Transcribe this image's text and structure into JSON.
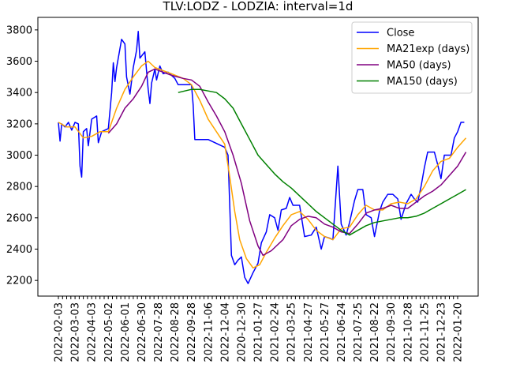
{
  "chart_data": {
    "type": "line",
    "title": "TLV:LODZ - LODZIA: interval=1d",
    "xlabel": "",
    "ylabel": "",
    "ylim": [
      2100,
      3880
    ],
    "y_ticks": [
      2200,
      2400,
      2600,
      2800,
      3000,
      3200,
      3400,
      3600,
      3800
    ],
    "x_tick_labels": [
      "2022-02-03",
      "2022-03-03",
      "2022-04-03",
      "2022-05-02",
      "2022-06-01",
      "2022-06-30",
      "2022-07-28",
      "2022-08-28",
      "2022-09-28",
      "2022-11-06",
      "2022-12-04",
      "2020-12-30",
      "2021-01-27",
      "2021-02-24",
      "2021-03-25",
      "2021-04-27",
      "2021-05-27",
      "2021-06-24",
      "2021-07-25",
      "2021-08-22",
      "2021-09-30",
      "2021-10-28",
      "2021-11-25",
      "2021-12-23",
      "2022-01-20"
    ],
    "x_count": 25,
    "grid": false,
    "legend_position": "top-right",
    "series": [
      {
        "name": "Close",
        "color": "#0000ff",
        "points": [
          [
            0,
            3210
          ],
          [
            0.1,
            3090
          ],
          [
            0.2,
            3200
          ],
          [
            0.4,
            3180
          ],
          [
            0.6,
            3210
          ],
          [
            0.8,
            3160
          ],
          [
            1.0,
            3210
          ],
          [
            1.2,
            3200
          ],
          [
            1.3,
            2930
          ],
          [
            1.4,
            2860
          ],
          [
            1.5,
            3150
          ],
          [
            1.7,
            3170
          ],
          [
            1.8,
            3060
          ],
          [
            2.0,
            3230
          ],
          [
            2.3,
            3250
          ],
          [
            2.4,
            3080
          ],
          [
            2.6,
            3150
          ],
          [
            3.0,
            3170
          ],
          [
            3.2,
            3400
          ],
          [
            3.3,
            3590
          ],
          [
            3.4,
            3470
          ],
          [
            3.5,
            3560
          ],
          [
            3.6,
            3620
          ],
          [
            3.8,
            3740
          ],
          [
            4.0,
            3710
          ],
          [
            4.1,
            3500
          ],
          [
            4.3,
            3390
          ],
          [
            4.5,
            3560
          ],
          [
            4.7,
            3670
          ],
          [
            4.8,
            3790
          ],
          [
            4.9,
            3620
          ],
          [
            5.2,
            3660
          ],
          [
            5.4,
            3420
          ],
          [
            5.5,
            3330
          ],
          [
            5.6,
            3460
          ],
          [
            5.8,
            3550
          ],
          [
            5.9,
            3480
          ],
          [
            6.1,
            3570
          ],
          [
            6.3,
            3520
          ],
          [
            6.6,
            3530
          ],
          [
            7.0,
            3490
          ],
          [
            7.2,
            3450
          ],
          [
            8.0,
            3450
          ],
          [
            8.1,
            3320
          ],
          [
            8.2,
            3100
          ],
          [
            9.0,
            3100
          ],
          [
            10.0,
            3050
          ],
          [
            10.2,
            3000
          ],
          [
            10.4,
            2360
          ],
          [
            10.6,
            2300
          ],
          [
            10.8,
            2330
          ],
          [
            11.0,
            2350
          ],
          [
            11.2,
            2220
          ],
          [
            11.4,
            2180
          ],
          [
            11.7,
            2250
          ],
          [
            12.0,
            2310
          ],
          [
            12.2,
            2440
          ],
          [
            12.5,
            2510
          ],
          [
            12.7,
            2620
          ],
          [
            13.0,
            2600
          ],
          [
            13.2,
            2520
          ],
          [
            13.4,
            2650
          ],
          [
            13.7,
            2660
          ],
          [
            13.9,
            2730
          ],
          [
            14.1,
            2680
          ],
          [
            14.5,
            2680
          ],
          [
            14.8,
            2480
          ],
          [
            15.2,
            2490
          ],
          [
            15.5,
            2540
          ],
          [
            15.8,
            2400
          ],
          [
            16.0,
            2480
          ],
          [
            16.3,
            2470
          ],
          [
            16.5,
            2460
          ],
          [
            16.8,
            2930
          ],
          [
            17.0,
            2560
          ],
          [
            17.3,
            2490
          ],
          [
            17.5,
            2570
          ],
          [
            17.8,
            2710
          ],
          [
            18.0,
            2780
          ],
          [
            18.3,
            2780
          ],
          [
            18.5,
            2620
          ],
          [
            18.8,
            2600
          ],
          [
            19.0,
            2480
          ],
          [
            19.3,
            2640
          ],
          [
            19.5,
            2700
          ],
          [
            19.8,
            2750
          ],
          [
            20.1,
            2750
          ],
          [
            20.4,
            2720
          ],
          [
            20.6,
            2590
          ],
          [
            20.9,
            2690
          ],
          [
            21.2,
            2750
          ],
          [
            21.4,
            2720
          ],
          [
            21.6,
            2700
          ],
          [
            21.8,
            2800
          ],
          [
            22.0,
            2920
          ],
          [
            22.2,
            3020
          ],
          [
            22.6,
            3020
          ],
          [
            22.8,
            2940
          ],
          [
            23.0,
            2850
          ],
          [
            23.2,
            3000
          ],
          [
            23.6,
            3000
          ],
          [
            23.8,
            3110
          ],
          [
            24.0,
            3150
          ],
          [
            24.2,
            3210
          ],
          [
            24.4,
            3210
          ]
        ]
      },
      {
        "name": "MA21exp (days)",
        "color": "#ffa500",
        "points": [
          [
            0,
            3210
          ],
          [
            0.5,
            3180
          ],
          [
            1.0,
            3180
          ],
          [
            1.5,
            3110
          ],
          [
            2.0,
            3120
          ],
          [
            2.5,
            3150
          ],
          [
            3.0,
            3150
          ],
          [
            3.5,
            3300
          ],
          [
            4.0,
            3420
          ],
          [
            4.5,
            3500
          ],
          [
            5.0,
            3570
          ],
          [
            5.4,
            3600
          ],
          [
            5.8,
            3560
          ],
          [
            6.3,
            3540
          ],
          [
            6.8,
            3520
          ],
          [
            7.5,
            3490
          ],
          [
            8.0,
            3450
          ],
          [
            8.5,
            3350
          ],
          [
            9.0,
            3230
          ],
          [
            9.5,
            3150
          ],
          [
            10.0,
            3070
          ],
          [
            10.3,
            2860
          ],
          [
            10.6,
            2640
          ],
          [
            10.9,
            2460
          ],
          [
            11.3,
            2340
          ],
          [
            11.7,
            2280
          ],
          [
            12.1,
            2300
          ],
          [
            12.5,
            2380
          ],
          [
            13.0,
            2470
          ],
          [
            13.5,
            2550
          ],
          [
            14.0,
            2620
          ],
          [
            14.5,
            2640
          ],
          [
            15.0,
            2590
          ],
          [
            15.5,
            2520
          ],
          [
            16.0,
            2480
          ],
          [
            16.5,
            2460
          ],
          [
            17.0,
            2530
          ],
          [
            17.5,
            2540
          ],
          [
            18.0,
            2620
          ],
          [
            18.5,
            2680
          ],
          [
            19.0,
            2650
          ],
          [
            19.5,
            2650
          ],
          [
            20.0,
            2690
          ],
          [
            20.5,
            2700
          ],
          [
            21.0,
            2690
          ],
          [
            21.5,
            2720
          ],
          [
            22.0,
            2800
          ],
          [
            22.5,
            2900
          ],
          [
            23.0,
            2960
          ],
          [
            23.5,
            2980
          ],
          [
            24.0,
            3050
          ],
          [
            24.5,
            3110
          ]
        ]
      },
      {
        "name": "MA50 (days)",
        "color": "#800080",
        "points": [
          [
            3.0,
            3140
          ],
          [
            3.5,
            3200
          ],
          [
            4.0,
            3300
          ],
          [
            4.5,
            3360
          ],
          [
            5.0,
            3440
          ],
          [
            5.4,
            3530
          ],
          [
            5.8,
            3550
          ],
          [
            6.3,
            3530
          ],
          [
            6.8,
            3510
          ],
          [
            7.5,
            3490
          ],
          [
            8.0,
            3480
          ],
          [
            8.5,
            3440
          ],
          [
            9.0,
            3340
          ],
          [
            9.5,
            3250
          ],
          [
            10.0,
            3150
          ],
          [
            10.5,
            3000
          ],
          [
            11.0,
            2820
          ],
          [
            11.5,
            2580
          ],
          [
            12.0,
            2420
          ],
          [
            12.3,
            2360
          ],
          [
            12.8,
            2390
          ],
          [
            13.5,
            2460
          ],
          [
            14.0,
            2550
          ],
          [
            14.5,
            2590
          ],
          [
            15.0,
            2610
          ],
          [
            15.5,
            2600
          ],
          [
            16.0,
            2560
          ],
          [
            16.5,
            2540
          ],
          [
            17.0,
            2510
          ],
          [
            17.5,
            2500
          ],
          [
            18.0,
            2560
          ],
          [
            18.5,
            2630
          ],
          [
            19.0,
            2650
          ],
          [
            19.5,
            2660
          ],
          [
            20.0,
            2680
          ],
          [
            20.5,
            2660
          ],
          [
            21.0,
            2660
          ],
          [
            21.5,
            2700
          ],
          [
            22.0,
            2740
          ],
          [
            22.5,
            2770
          ],
          [
            23.0,
            2810
          ],
          [
            23.5,
            2870
          ],
          [
            24.0,
            2930
          ],
          [
            24.5,
            3020
          ]
        ]
      },
      {
        "name": "MA150 (days)",
        "color": "#008000",
        "points": [
          [
            7.2,
            3400
          ],
          [
            7.6,
            3410
          ],
          [
            8.0,
            3420
          ],
          [
            8.5,
            3420
          ],
          [
            9.0,
            3410
          ],
          [
            9.5,
            3400
          ],
          [
            10.0,
            3360
          ],
          [
            10.5,
            3300
          ],
          [
            11.0,
            3200
          ],
          [
            11.5,
            3100
          ],
          [
            12.0,
            3000
          ],
          [
            12.5,
            2940
          ],
          [
            13.0,
            2880
          ],
          [
            13.5,
            2830
          ],
          [
            14.0,
            2790
          ],
          [
            14.5,
            2740
          ],
          [
            15.0,
            2690
          ],
          [
            15.5,
            2640
          ],
          [
            16.0,
            2600
          ],
          [
            16.5,
            2560
          ],
          [
            17.0,
            2520
          ],
          [
            17.5,
            2490
          ],
          [
            18.0,
            2520
          ],
          [
            18.5,
            2550
          ],
          [
            19.0,
            2570
          ],
          [
            19.5,
            2580
          ],
          [
            20.0,
            2590
          ],
          [
            20.5,
            2600
          ],
          [
            21.0,
            2600
          ],
          [
            21.5,
            2610
          ],
          [
            22.0,
            2630
          ],
          [
            22.5,
            2660
          ],
          [
            23.0,
            2690
          ],
          [
            23.5,
            2720
          ],
          [
            24.0,
            2750
          ],
          [
            24.5,
            2780
          ]
        ]
      }
    ]
  }
}
